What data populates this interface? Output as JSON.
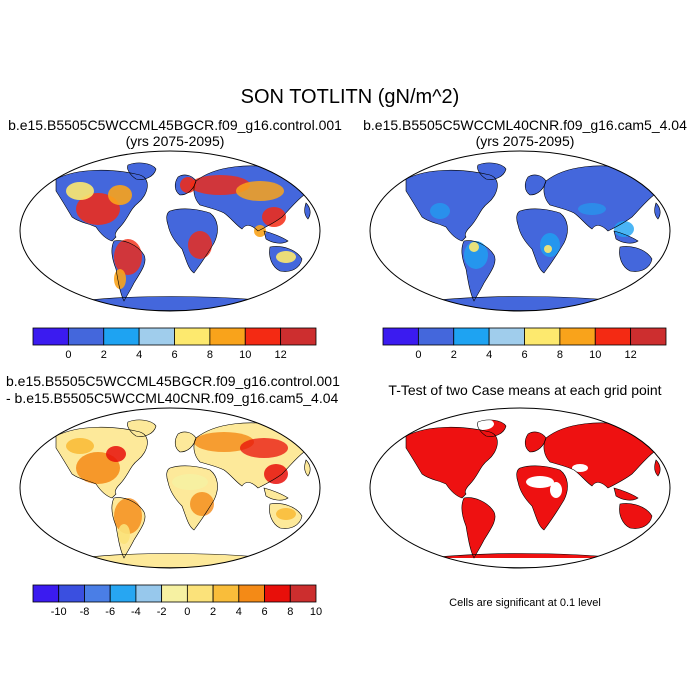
{
  "title": "SON TOTLITN (gN/m^2)",
  "panels": {
    "top_left": {
      "title_line1": "b.e15.B5505C5WCCML45BGCR.f09_g16.control.001",
      "title_line2": "(yrs 2075-2095)"
    },
    "top_right": {
      "title_line1": "b.e15.B5505C5WCCML40CNR.f09_g16.cam5_4.04",
      "title_line2": "(yrs 2075-2095)"
    },
    "bottom_left": {
      "title_line1": "b.e15.B5505C5WCCML45BGCR.f09_g16.control.001",
      "title_line2": "- b.e15.B5505C5WCCML40CNR.f09_g16.cam5_4.04"
    },
    "bottom_right": {
      "title": "T-Test of two Case means at each grid point",
      "note": "Cells are significant at 0.1 level"
    }
  },
  "colorbars": {
    "abs": {
      "colors": [
        "#3b1bf0",
        "#4467dc",
        "#1ea3f2",
        "#a0cdec",
        "#fde96e",
        "#f9a31b",
        "#f42a13",
        "#cd2e2f"
      ],
      "labels": [
        "0",
        "2",
        "4",
        "6",
        "8",
        "10",
        "12"
      ]
    },
    "diff": {
      "colors": [
        "#3b1bf0",
        "#3a4fe0",
        "#4a7ee6",
        "#27a6f2",
        "#97c8ec",
        "#f6f1a2",
        "#fbe27a",
        "#f9bd3a",
        "#f48a16",
        "#e80f0a",
        "#cc2e2e"
      ],
      "labels": [
        "-10",
        "-8",
        "-6",
        "-4",
        "-2",
        "0",
        "2",
        "4",
        "6",
        "8",
        "10"
      ]
    }
  },
  "map_colors": {
    "ocean_abs": "#ffffff",
    "abs_background": "#4467dc",
    "diff_background": "#fde99a",
    "significant": "#ee1111"
  }
}
